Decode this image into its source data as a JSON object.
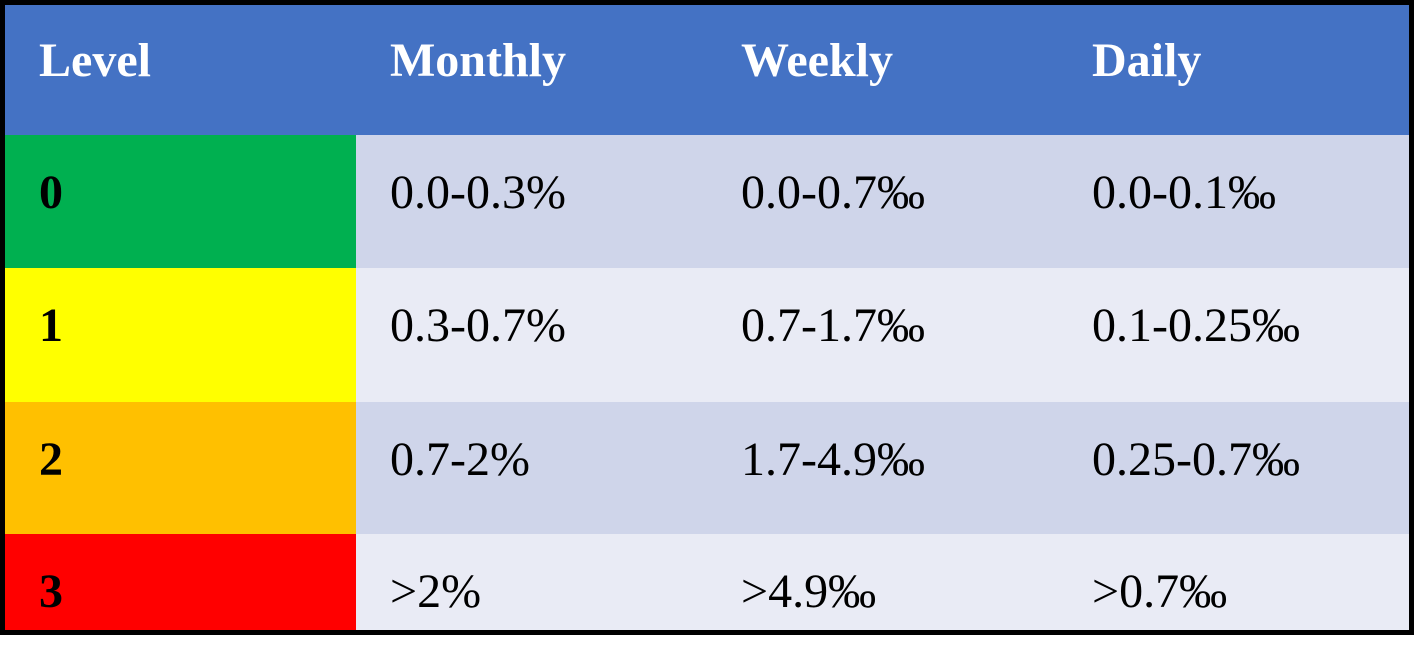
{
  "table": {
    "header": [
      "Level",
      "Monthly",
      "Weekly",
      "Daily"
    ],
    "rows": [
      [
        "0",
        "0.0-0.3%",
        "0.0-0.7‰",
        "0.0-0.1‰"
      ],
      [
        "1",
        "0.3-0.7%",
        "0.7-1.7‰",
        "0.1-0.25‰"
      ],
      [
        "2",
        "0.7-2%",
        "1.7-4.9‰",
        "0.25-0.7‰"
      ],
      [
        "3",
        ">2%",
        ">4.9‰",
        ">0.7‰"
      ]
    ]
  }
}
